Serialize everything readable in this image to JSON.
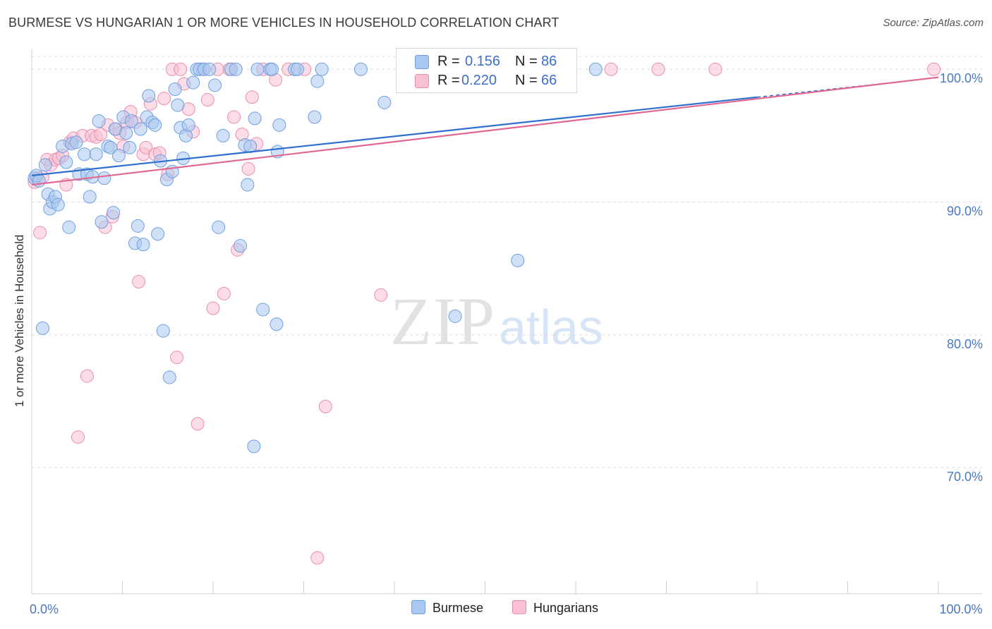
{
  "title": "BURMESE VS HUNGARIAN 1 OR MORE VEHICLES IN HOUSEHOLD CORRELATION CHART",
  "source": "Source: ZipAtlas.com",
  "watermark": {
    "zip": "ZIP",
    "atlas": "atlas"
  },
  "legend_top": [
    {
      "r_label": "R =",
      "r_value": "0.156",
      "n_label": "N =",
      "n_value": "86"
    },
    {
      "r_label": "R =",
      "r_value": "0.220",
      "n_label": "N =",
      "n_value": "66"
    }
  ],
  "colors": {
    "burmese_fill": "#a9c8f0",
    "burmese_stroke": "#6f9fe0",
    "burmese_line": "#2f6fce",
    "hungarian_fill": "#f8c0d3",
    "hungarian_stroke": "#ea8fae",
    "hungarian_line": "#e06892",
    "tick_text": "#4a78c2",
    "grid": "#dddddd"
  },
  "chart_data": {
    "type": "scatter",
    "xlabel": "",
    "ylabel": "1 or more Vehicles in Household",
    "xlim": [
      0,
      100
    ],
    "ylim": [
      60.5,
      101.5
    ],
    "x_tick_labels": [
      {
        "value": 0,
        "label": "0.0%"
      },
      {
        "value": 100,
        "label": "100.0%"
      }
    ],
    "y_tick_labels": [
      {
        "value": 70,
        "label": "70.0%"
      },
      {
        "value": 80,
        "label": "80.0%"
      },
      {
        "value": 90,
        "label": "90.0%"
      },
      {
        "value": 100,
        "label": "100.0%"
      }
    ],
    "grid": "horizontal dashed",
    "legend": "bottom-center",
    "series": [
      {
        "name": "Burmese",
        "trend": {
          "x": [
            0,
            80
          ],
          "y": [
            92.0,
            97.9
          ],
          "dashed_extension_to": 100
        },
        "points": [
          [
            0.3,
            91.8
          ],
          [
            0.5,
            92.0
          ],
          [
            0.8,
            91.6
          ],
          [
            1.2,
            80.5
          ],
          [
            1.5,
            92.8
          ],
          [
            1.8,
            90.6
          ],
          [
            2.0,
            89.5
          ],
          [
            2.3,
            90.0
          ],
          [
            2.6,
            90.4
          ],
          [
            2.9,
            89.8
          ],
          [
            3.4,
            94.2
          ],
          [
            3.8,
            93.0
          ],
          [
            4.1,
            88.1
          ],
          [
            4.4,
            94.4
          ],
          [
            4.9,
            94.5
          ],
          [
            5.2,
            92.1
          ],
          [
            5.8,
            93.6
          ],
          [
            6.1,
            92.1
          ],
          [
            6.4,
            90.4
          ],
          [
            6.7,
            91.9
          ],
          [
            7.1,
            93.6
          ],
          [
            7.4,
            96.1
          ],
          [
            7.7,
            88.5
          ],
          [
            8.0,
            91.8
          ],
          [
            8.4,
            94.2
          ],
          [
            8.7,
            94.1
          ],
          [
            9.0,
            89.2
          ],
          [
            9.2,
            95.5
          ],
          [
            9.6,
            93.5
          ],
          [
            10.1,
            96.4
          ],
          [
            10.4,
            95.2
          ],
          [
            10.8,
            94.1
          ],
          [
            11.0,
            96.1
          ],
          [
            11.4,
            86.9
          ],
          [
            11.7,
            88.2
          ],
          [
            12.0,
            95.5
          ],
          [
            12.3,
            86.8
          ],
          [
            12.7,
            96.4
          ],
          [
            12.9,
            98.0
          ],
          [
            13.3,
            96.0
          ],
          [
            13.6,
            95.8
          ],
          [
            13.9,
            87.6
          ],
          [
            14.2,
            93.1
          ],
          [
            14.5,
            80.3
          ],
          [
            14.9,
            91.7
          ],
          [
            15.2,
            76.8
          ],
          [
            15.5,
            92.3
          ],
          [
            15.8,
            98.5
          ],
          [
            16.1,
            97.3
          ],
          [
            16.4,
            95.6
          ],
          [
            16.7,
            93.3
          ],
          [
            17.0,
            95.0
          ],
          [
            17.3,
            95.8
          ],
          [
            17.8,
            99.0
          ],
          [
            18.2,
            100.0
          ],
          [
            18.5,
            100.0
          ],
          [
            19.0,
            100.0
          ],
          [
            19.6,
            100.0
          ],
          [
            20.2,
            98.8
          ],
          [
            20.6,
            88.1
          ],
          [
            21.1,
            95.0
          ],
          [
            22.0,
            100.0
          ],
          [
            22.5,
            100.0
          ],
          [
            23.0,
            86.7
          ],
          [
            23.5,
            94.3
          ],
          [
            23.8,
            91.3
          ],
          [
            24.1,
            94.2
          ],
          [
            24.6,
            96.3
          ],
          [
            24.9,
            100.0
          ],
          [
            25.5,
            81.9
          ],
          [
            26.3,
            100.0
          ],
          [
            26.5,
            100.0
          ],
          [
            27.0,
            80.8
          ],
          [
            27.3,
            95.8
          ],
          [
            27.1,
            93.8
          ],
          [
            29.0,
            100.0
          ],
          [
            29.3,
            100.0
          ],
          [
            31.2,
            96.4
          ],
          [
            31.5,
            99.1
          ],
          [
            32.0,
            100.0
          ],
          [
            36.3,
            100.0
          ],
          [
            38.9,
            97.5
          ],
          [
            46.7,
            81.4
          ],
          [
            53.6,
            85.6
          ],
          [
            62.2,
            100.0
          ],
          [
            24.5,
            71.6
          ]
        ]
      },
      {
        "name": "Hungarians",
        "trend": {
          "x": [
            0,
            100
          ],
          "y": [
            91.3,
            99.4
          ]
        },
        "points": [
          [
            0.3,
            91.5
          ],
          [
            0.6,
            91.8
          ],
          [
            0.9,
            87.7
          ],
          [
            1.2,
            91.9
          ],
          [
            1.7,
            93.2
          ],
          [
            2.1,
            92.8
          ],
          [
            2.6,
            93.2
          ],
          [
            3.0,
            93.3
          ],
          [
            3.4,
            93.5
          ],
          [
            3.8,
            91.3
          ],
          [
            4.2,
            94.5
          ],
          [
            4.6,
            94.8
          ],
          [
            5.1,
            72.3
          ],
          [
            5.6,
            95.0
          ],
          [
            6.1,
            76.9
          ],
          [
            6.6,
            95.0
          ],
          [
            7.1,
            94.9
          ],
          [
            7.6,
            95.1
          ],
          [
            8.1,
            88.1
          ],
          [
            8.4,
            95.8
          ],
          [
            8.9,
            88.9
          ],
          [
            9.3,
            95.5
          ],
          [
            9.7,
            95.2
          ],
          [
            10.1,
            94.2
          ],
          [
            10.5,
            96.0
          ],
          [
            10.9,
            96.8
          ],
          [
            11.4,
            96.0
          ],
          [
            11.8,
            84.0
          ],
          [
            12.3,
            93.6
          ],
          [
            12.6,
            94.1
          ],
          [
            13.1,
            97.4
          ],
          [
            13.6,
            93.6
          ],
          [
            14.1,
            93.7
          ],
          [
            14.6,
            97.8
          ],
          [
            15.0,
            92.1
          ],
          [
            15.5,
            100.0
          ],
          [
            16.0,
            78.3
          ],
          [
            16.4,
            100.0
          ],
          [
            16.8,
            98.9
          ],
          [
            17.3,
            97.0
          ],
          [
            17.8,
            95.3
          ],
          [
            18.3,
            73.3
          ],
          [
            18.8,
            100.0
          ],
          [
            19.4,
            97.7
          ],
          [
            20.0,
            82.0
          ],
          [
            20.5,
            100.0
          ],
          [
            21.2,
            83.1
          ],
          [
            21.8,
            100.0
          ],
          [
            22.3,
            96.4
          ],
          [
            22.7,
            86.4
          ],
          [
            23.2,
            95.1
          ],
          [
            23.9,
            92.5
          ],
          [
            24.3,
            97.9
          ],
          [
            24.8,
            94.4
          ],
          [
            25.5,
            100.0
          ],
          [
            26.9,
            99.2
          ],
          [
            28.3,
            100.0
          ],
          [
            30.1,
            100.0
          ],
          [
            31.5,
            63.2
          ],
          [
            32.4,
            74.6
          ],
          [
            38.5,
            83.0
          ],
          [
            53.4,
            100.0
          ],
          [
            63.9,
            100.0
          ],
          [
            69.1,
            100.0
          ],
          [
            75.4,
            100.0
          ],
          [
            99.5,
            100.0
          ]
        ]
      }
    ]
  }
}
